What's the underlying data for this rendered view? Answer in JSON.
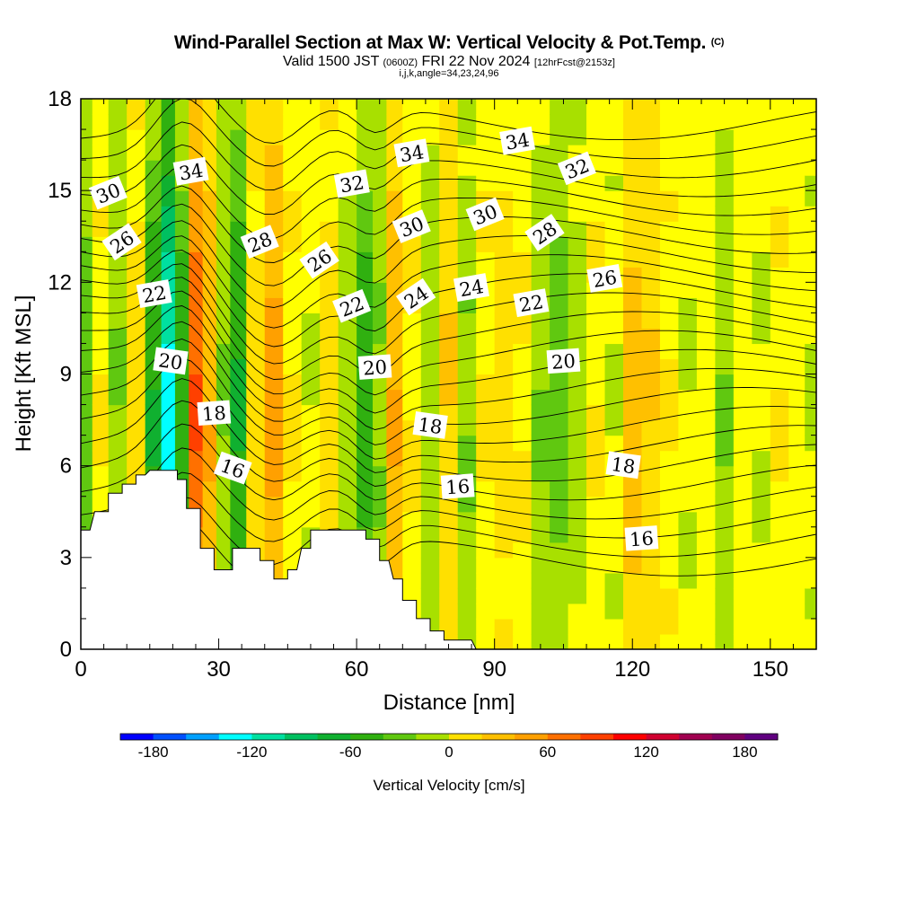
{
  "header": {
    "title": "Wind-Parallel Section at Max W: Vertical Velocity & Pot.Temp.",
    "copyright": "(C)",
    "valid_prefix": "Valid 1500 JST",
    "valid_zulu": "(0600Z)",
    "valid_date": "FRI 22 Nov 2024",
    "forecast": "[12hrFcst@2153z]",
    "params": "i,j,k,angle=34,23,24,96"
  },
  "chart_data": {
    "type": "heatmap",
    "title": "Wind-Parallel Section at Max W: Vertical Velocity & Pot.Temp.",
    "xlabel": "Distance [nm]",
    "ylabel": "Height [Kft MSL]",
    "xlim": [
      0,
      160
    ],
    "ylim": [
      0,
      18
    ],
    "x_ticks": [
      0,
      30,
      60,
      90,
      120,
      150
    ],
    "y_ticks": [
      0,
      3,
      6,
      9,
      12,
      15,
      18
    ],
    "colorbar": {
      "label": "Vertical Velocity [cm/s]",
      "ticks": [
        -180,
        -120,
        -60,
        0,
        60,
        120,
        180
      ],
      "range": [
        -200,
        200
      ],
      "step": 20,
      "colors": [
        "#0000ff",
        "#0050ff",
        "#00a0ff",
        "#00ffff",
        "#00e0a0",
        "#00c060",
        "#10b030",
        "#30b010",
        "#60c810",
        "#a8e000",
        "#ffff00",
        "#ffe000",
        "#ffc000",
        "#ffa000",
        "#ff7000",
        "#ff4000",
        "#ff0000",
        "#d00030",
        "#a00050",
        "#800060",
        "#600080"
      ]
    },
    "terrain_kft": [
      [
        0,
        3.9
      ],
      [
        2,
        3.9
      ],
      [
        3,
        4.5
      ],
      [
        6,
        4.5
      ],
      [
        6,
        5.1
      ],
      [
        9,
        5.1
      ],
      [
        9,
        5.4
      ],
      [
        12,
        5.4
      ],
      [
        12,
        5.7
      ],
      [
        14,
        5.7
      ],
      [
        15,
        5.85
      ],
      [
        21,
        5.85
      ],
      [
        21,
        5.55
      ],
      [
        23,
        5.55
      ],
      [
        23,
        4.6
      ],
      [
        26,
        4.6
      ],
      [
        26,
        3.3
      ],
      [
        29,
        3.3
      ],
      [
        29,
        2.6
      ],
      [
        33,
        2.6
      ],
      [
        33,
        3.3
      ],
      [
        39,
        3.3
      ],
      [
        39,
        2.9
      ],
      [
        42,
        2.9
      ],
      [
        42,
        2.3
      ],
      [
        45,
        2.3
      ],
      [
        45,
        2.6
      ],
      [
        47,
        2.6
      ],
      [
        48,
        3.3
      ],
      [
        50,
        3.3
      ],
      [
        50,
        3.9
      ],
      [
        62,
        3.9
      ],
      [
        62,
        3.6
      ],
      [
        65,
        3.6
      ],
      [
        65,
        2.9
      ],
      [
        67,
        2.9
      ],
      [
        68,
        2.3
      ],
      [
        70,
        2.3
      ],
      [
        70,
        1.6
      ],
      [
        73,
        1.6
      ],
      [
        73,
        1.0
      ],
      [
        76,
        1.0
      ],
      [
        76,
        0.6
      ],
      [
        79,
        0.6
      ],
      [
        79,
        0.3
      ],
      [
        85,
        0.3
      ],
      [
        86,
        0
      ],
      [
        160,
        0
      ]
    ],
    "w_columns": [
      {
        "x": 1,
        "w": -40
      },
      {
        "x": 4,
        "w": 10
      },
      {
        "x": 8,
        "w": -30
      },
      {
        "x": 12,
        "w": 20
      },
      {
        "x": 16,
        "w": -70
      },
      {
        "x": 19,
        "w": -140
      },
      {
        "x": 22,
        "w": -60
      },
      {
        "x": 25,
        "w": 90
      },
      {
        "x": 28,
        "w": 50
      },
      {
        "x": 31,
        "w": -30
      },
      {
        "x": 34,
        "w": -70
      },
      {
        "x": 38,
        "w": 20
      },
      {
        "x": 42,
        "w": 60
      },
      {
        "x": 46,
        "w": 10
      },
      {
        "x": 50,
        "w": -10
      },
      {
        "x": 54,
        "w": 20
      },
      {
        "x": 58,
        "w": -20
      },
      {
        "x": 62,
        "w": -60
      },
      {
        "x": 65,
        "w": -30
      },
      {
        "x": 68,
        "w": 50
      },
      {
        "x": 72,
        "w": 10
      },
      {
        "x": 76,
        "w": -20
      },
      {
        "x": 80,
        "w": 30
      },
      {
        "x": 84,
        "w": -30
      },
      {
        "x": 88,
        "w": 10
      },
      {
        "x": 92,
        "w": 20
      },
      {
        "x": 96,
        "w": 10
      },
      {
        "x": 100,
        "w": -30
      },
      {
        "x": 104,
        "w": -40
      },
      {
        "x": 108,
        "w": -20
      },
      {
        "x": 112,
        "w": 10
      },
      {
        "x": 116,
        "w": -10
      },
      {
        "x": 120,
        "w": 40
      },
      {
        "x": 124,
        "w": 30
      },
      {
        "x": 128,
        "w": 10
      },
      {
        "x": 132,
        "w": -10
      },
      {
        "x": 136,
        "w": 0
      },
      {
        "x": 140,
        "w": -30
      },
      {
        "x": 144,
        "w": 0
      },
      {
        "x": 148,
        "w": -10
      },
      {
        "x": 152,
        "w": 10
      },
      {
        "x": 156,
        "w": 0
      },
      {
        "x": 159,
        "w": -10
      }
    ],
    "theta_labels": [
      {
        "text": "34",
        "x": 24,
        "y": 15.6
      },
      {
        "text": "30",
        "x": 6,
        "y": 14.9
      },
      {
        "text": "26",
        "x": 9,
        "y": 13.3
      },
      {
        "text": "22",
        "x": 16,
        "y": 11.6
      },
      {
        "text": "20",
        "x": 19.5,
        "y": 9.4
      },
      {
        "text": "18",
        "x": 29,
        "y": 7.7
      },
      {
        "text": "16",
        "x": 33,
        "y": 5.9
      },
      {
        "text": "28",
        "x": 39,
        "y": 13.3
      },
      {
        "text": "26",
        "x": 52,
        "y": 12.7
      },
      {
        "text": "32",
        "x": 59,
        "y": 15.2
      },
      {
        "text": "22",
        "x": 59,
        "y": 11.2
      },
      {
        "text": "20",
        "x": 64,
        "y": 9.2
      },
      {
        "text": "34",
        "x": 72,
        "y": 16.2
      },
      {
        "text": "30",
        "x": 72,
        "y": 13.8
      },
      {
        "text": "24",
        "x": 73,
        "y": 11.5
      },
      {
        "text": "24",
        "x": 85,
        "y": 11.8
      },
      {
        "text": "18",
        "x": 76,
        "y": 7.3
      },
      {
        "text": "16",
        "x": 82,
        "y": 5.3
      },
      {
        "text": "34",
        "x": 95,
        "y": 16.6
      },
      {
        "text": "30",
        "x": 88,
        "y": 14.2
      },
      {
        "text": "28",
        "x": 101,
        "y": 13.6
      },
      {
        "text": "22",
        "x": 98,
        "y": 11.3
      },
      {
        "text": "32",
        "x": 108,
        "y": 15.7
      },
      {
        "text": "20",
        "x": 105,
        "y": 9.4
      },
      {
        "text": "26",
        "x": 114,
        "y": 12.1
      },
      {
        "text": "18",
        "x": 118,
        "y": 6.0
      },
      {
        "text": "16",
        "x": 122,
        "y": 3.6
      }
    ],
    "theta_levels": [
      15,
      16,
      17,
      18,
      19,
      20,
      21,
      22,
      23,
      24,
      25,
      26,
      27,
      28,
      29,
      30,
      31,
      32,
      33,
      34,
      35,
      36,
      37,
      38
    ]
  }
}
